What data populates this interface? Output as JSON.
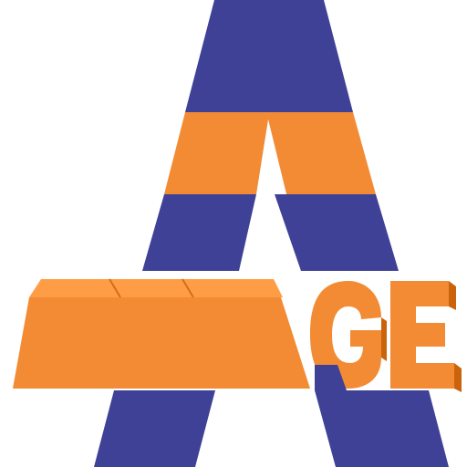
{
  "logo": {
    "letters": "AGE",
    "colors": {
      "blue": "#3e4196",
      "orange": "#f28b34",
      "white": "#ffffff"
    }
  }
}
